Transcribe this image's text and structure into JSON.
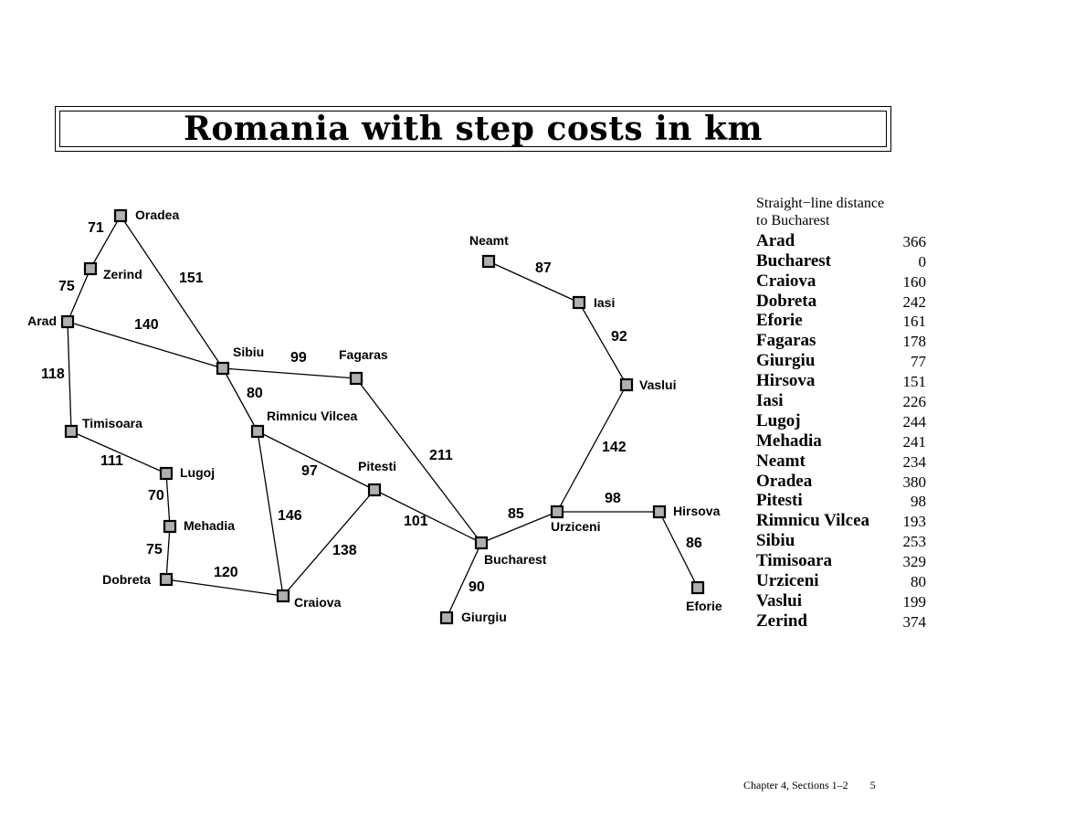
{
  "title": "Romania with step costs in km",
  "legend": {
    "header_line1": "Straight−line distance",
    "header_line2": "to Bucharest",
    "rows": [
      {
        "city": "Arad",
        "value": "366"
      },
      {
        "city": "Bucharest",
        "value": "0"
      },
      {
        "city": "Craiova",
        "value": "160"
      },
      {
        "city": "Dobreta",
        "value": "242"
      },
      {
        "city": "Eforie",
        "value": "161"
      },
      {
        "city": "Fagaras",
        "value": "178"
      },
      {
        "city": "Giurgiu",
        "value": "77"
      },
      {
        "city": "Hirsova",
        "value": "151"
      },
      {
        "city": "Iasi",
        "value": "226"
      },
      {
        "city": "Lugoj",
        "value": "244"
      },
      {
        "city": "Mehadia",
        "value": "241"
      },
      {
        "city": "Neamt",
        "value": "234"
      },
      {
        "city": "Oradea",
        "value": "380"
      },
      {
        "city": "Pitesti",
        "value": "98"
      },
      {
        "city": "Rimnicu Vilcea",
        "value": "193"
      },
      {
        "city": "Sibiu",
        "value": "253"
      },
      {
        "city": "Timisoara",
        "value": "329"
      },
      {
        "city": "Urziceni",
        "value": "80"
      },
      {
        "city": "Vaslui",
        "value": "199"
      },
      {
        "city": "Zerind",
        "value": "374"
      }
    ]
  },
  "cities": [
    "Oradea",
    "Zerind",
    "Arad",
    "Sibiu",
    "Fagaras",
    "Timisoara",
    "Rimnicu Vilcea",
    "Lugoj",
    "Pitesti",
    "Mehadia",
    "Dobreta",
    "Craiova",
    "Bucharest",
    "Giurgiu",
    "Neamt",
    "Iasi",
    "Vaslui",
    "Urziceni",
    "Hirsova",
    "Eforie"
  ],
  "roads": [
    {
      "from": "Oradea",
      "to": "Zerind",
      "cost": "71"
    },
    {
      "from": "Zerind",
      "to": "Arad",
      "cost": "75"
    },
    {
      "from": "Oradea",
      "to": "Sibiu",
      "cost": "151"
    },
    {
      "from": "Arad",
      "to": "Sibiu",
      "cost": "140"
    },
    {
      "from": "Arad",
      "to": "Timisoara",
      "cost": "118"
    },
    {
      "from": "Timisoara",
      "to": "Lugoj",
      "cost": "111"
    },
    {
      "from": "Lugoj",
      "to": "Mehadia",
      "cost": "70"
    },
    {
      "from": "Mehadia",
      "to": "Dobreta",
      "cost": "75"
    },
    {
      "from": "Dobreta",
      "to": "Craiova",
      "cost": "120"
    },
    {
      "from": "Sibiu",
      "to": "Fagaras",
      "cost": "99"
    },
    {
      "from": "Sibiu",
      "to": "Rimnicu Vilcea",
      "cost": "80"
    },
    {
      "from": "Rimnicu Vilcea",
      "to": "Pitesti",
      "cost": "97"
    },
    {
      "from": "Rimnicu Vilcea",
      "to": "Craiova",
      "cost": "146"
    },
    {
      "from": "Craiova",
      "to": "Pitesti",
      "cost": "138"
    },
    {
      "from": "Pitesti",
      "to": "Bucharest",
      "cost": "101"
    },
    {
      "from": "Fagaras",
      "to": "Bucharest",
      "cost": "211"
    },
    {
      "from": "Bucharest",
      "to": "Giurgiu",
      "cost": "90"
    },
    {
      "from": "Bucharest",
      "to": "Urziceni",
      "cost": "85"
    },
    {
      "from": "Urziceni",
      "to": "Hirsova",
      "cost": "98"
    },
    {
      "from": "Hirsova",
      "to": "Eforie",
      "cost": "86"
    },
    {
      "from": "Urziceni",
      "to": "Vaslui",
      "cost": "142"
    },
    {
      "from": "Vaslui",
      "to": "Iasi",
      "cost": "92"
    },
    {
      "from": "Iasi",
      "to": "Neamt",
      "cost": "87"
    }
  ],
  "footer": {
    "chapter": "Chapter 4, Sections 1–2",
    "page": "5"
  },
  "colors": {
    "node_fill": "#b0b0b0",
    "stroke": "#000000"
  }
}
